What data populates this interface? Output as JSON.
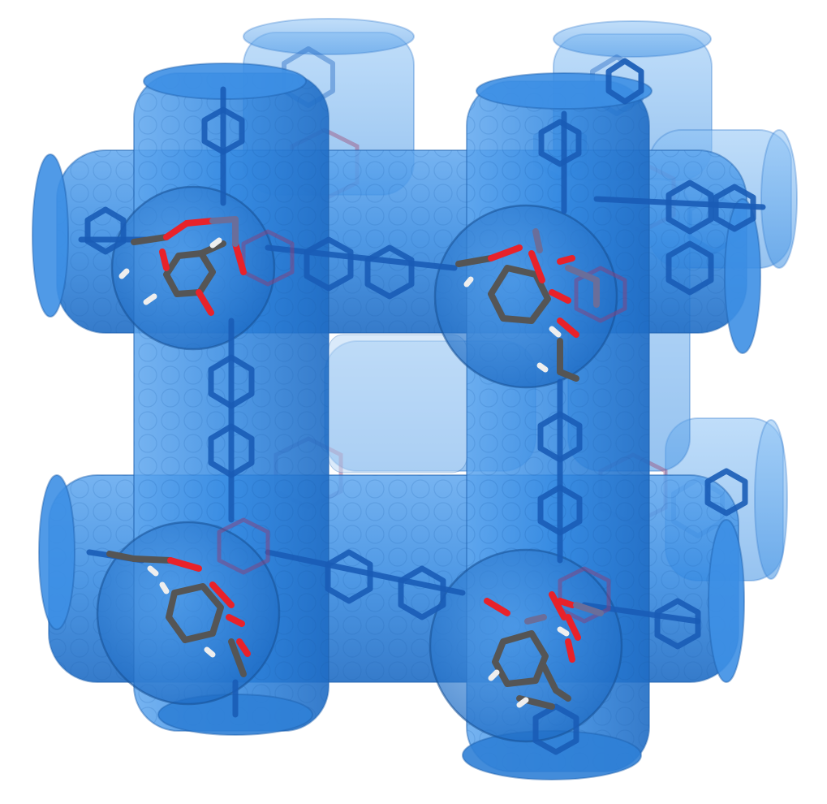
{
  "figure": {
    "subject": "",
    "colors": {
      "background": "#ffffff",
      "tube": "#2f86e0",
      "tube_back": "#6fb0f2",
      "tube_edge": "#1f5fa8",
      "linker": "#1b5fb8",
      "metal": "#6a6e9a",
      "oxygen": "#e8222a",
      "carbon": "#555555",
      "hydrogen": "#eeeeee",
      "faint_red": "#b0384e"
    },
    "icons": {
      "framework": "porous-framework-illustration",
      "node": "metal-node-cluster",
      "guest": "guest-molecule"
    }
  }
}
